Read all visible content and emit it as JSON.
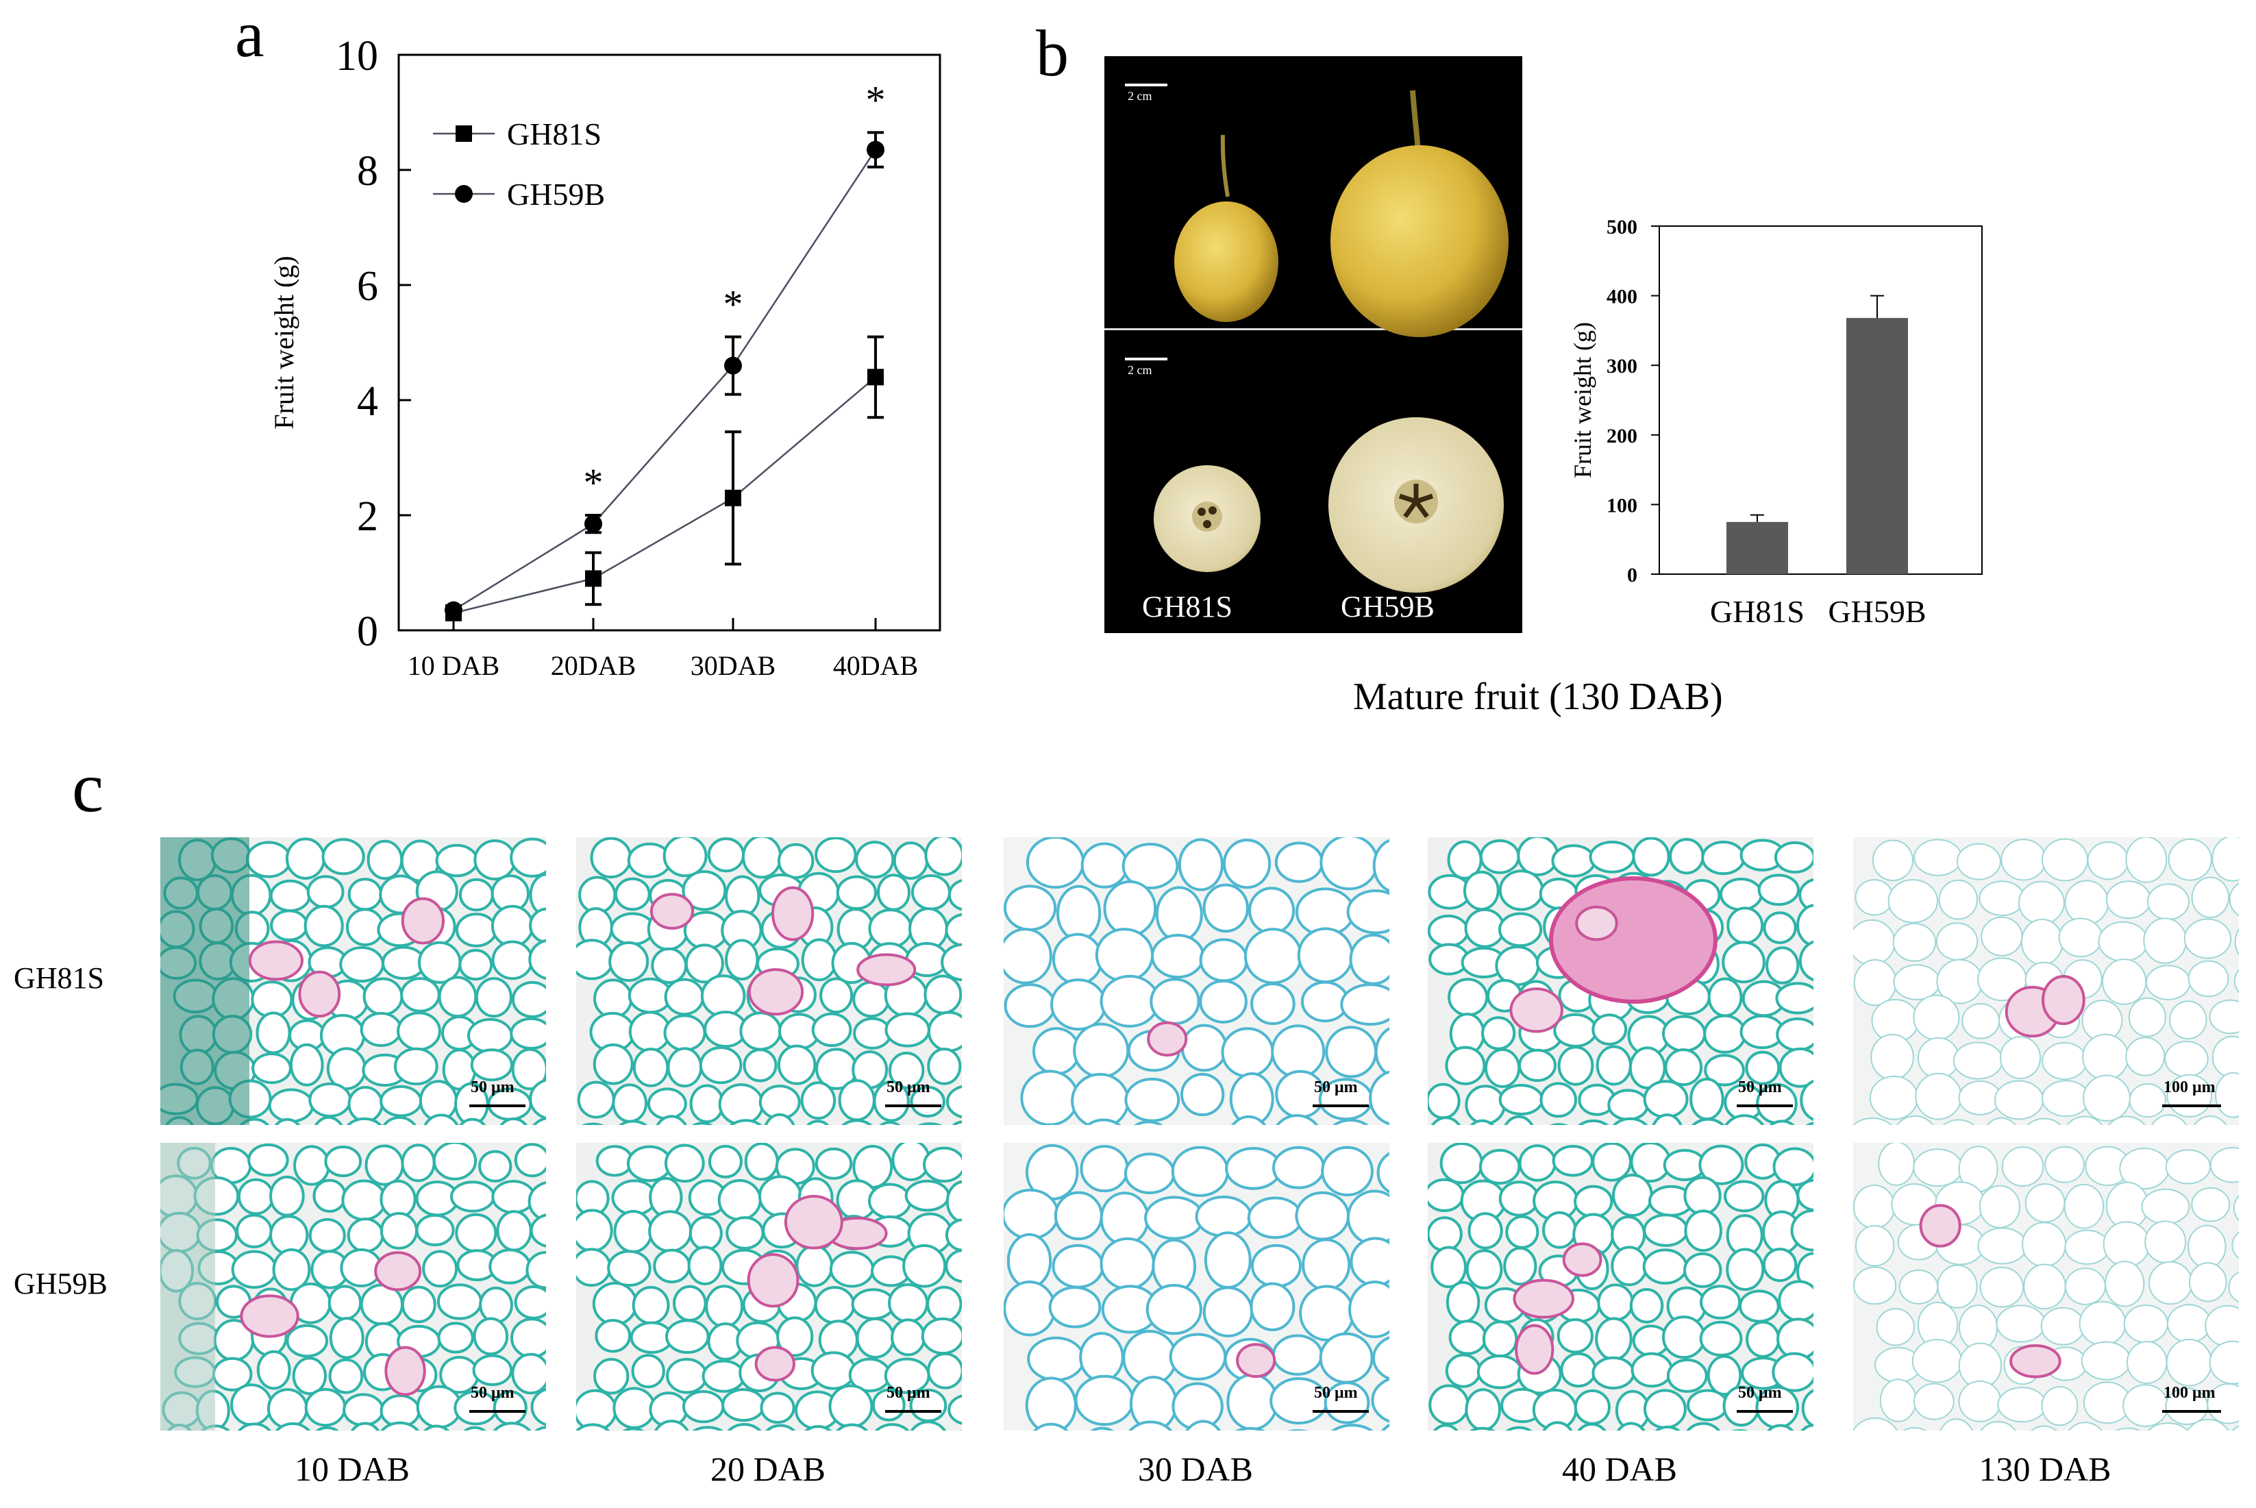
{
  "panels": {
    "a": "a",
    "b": "b",
    "c": "c"
  },
  "chart_data": [
    {
      "id": "a",
      "type": "line",
      "ylabel": "Fruit weight (g)",
      "categories": [
        "10 DAB",
        "20DAB",
        "30DAB",
        "40DAB"
      ],
      "ylim": [
        0,
        10
      ],
      "yticks": [
        0,
        2,
        4,
        6,
        8,
        10
      ],
      "legend_position": "top-left",
      "series": [
        {
          "name": "GH81S",
          "marker": "square",
          "values": [
            0.3,
            0.9,
            2.3,
            4.4
          ],
          "errors": [
            0.1,
            0.45,
            1.15,
            0.7
          ]
        },
        {
          "name": "GH59B",
          "marker": "circle",
          "values": [
            0.35,
            1.85,
            4.6,
            8.35
          ],
          "errors": [
            0.08,
            0.15,
            0.5,
            0.3
          ]
        }
      ],
      "significance": [
        "",
        "*",
        "*",
        "*"
      ]
    },
    {
      "id": "b",
      "type": "bar",
      "ylabel": "Fruit weight (g)",
      "categories": [
        "GH81S",
        "GH59B"
      ],
      "values": [
        75,
        368
      ],
      "errors": [
        10,
        32
      ],
      "ylim": [
        0,
        500
      ],
      "yticks": [
        0,
        100,
        200,
        300,
        400,
        500
      ],
      "color": "#595959"
    }
  ],
  "photo": {
    "scale_top": "2 cm",
    "scale_bottom": "2 cm",
    "label_left": "GH81S",
    "label_right": "GH59B",
    "caption": "Mature fruit (130 DAB)"
  },
  "micrographs": {
    "rows": [
      "GH81S",
      "GH59B"
    ],
    "columns": [
      "10 DAB",
      "20 DAB",
      "30 DAB",
      "40 DAB",
      "130 DAB"
    ],
    "scales": [
      [
        "50 μm",
        "50 μm",
        "50 μm",
        "50 μm",
        "100 μm"
      ],
      [
        "50 μm",
        "50 μm",
        "50 μm",
        "50 μm",
        "100 μm"
      ]
    ]
  }
}
